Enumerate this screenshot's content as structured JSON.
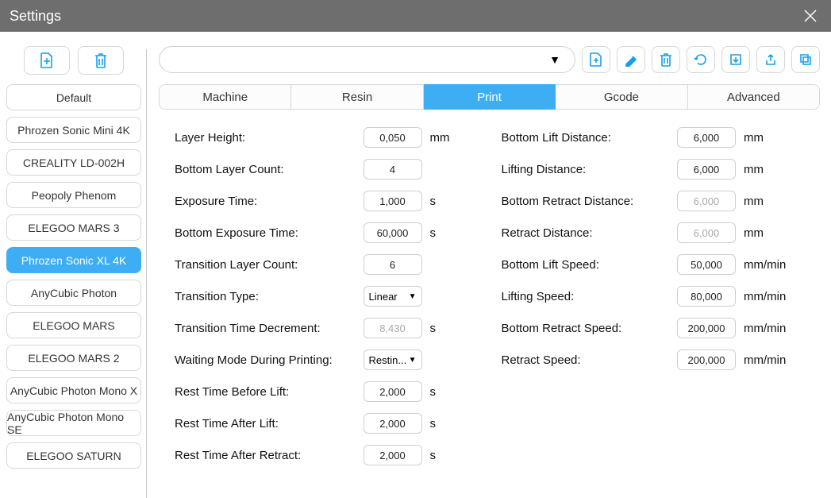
{
  "window": {
    "title": "Settings"
  },
  "sidebar": {
    "profiles": [
      {
        "label": "Default",
        "active": false
      },
      {
        "label": "Phrozen Sonic Mini 4K",
        "active": false
      },
      {
        "label": "CREALITY LD-002H",
        "active": false
      },
      {
        "label": "Peopoly Phenom",
        "active": false
      },
      {
        "label": "ELEGOO MARS 3",
        "active": false
      },
      {
        "label": "Phrozen Sonic XL 4K",
        "active": true
      },
      {
        "label": "AnyCubic Photon",
        "active": false
      },
      {
        "label": "ELEGOO MARS",
        "active": false
      },
      {
        "label": "ELEGOO MARS 2",
        "active": false
      },
      {
        "label": "AnyCubic Photon Mono X",
        "active": false
      },
      {
        "label": "AnyCubic Photon Mono SE",
        "active": false
      },
      {
        "label": "ELEGOO SATURN",
        "active": false
      }
    ]
  },
  "tabs": {
    "items": [
      "Machine",
      "Resin",
      "Print",
      "Gcode",
      "Advanced"
    ],
    "active_index": 2
  },
  "colors": {
    "accent": "#3daef4",
    "icon": "#139ff0",
    "border": "#d7d7d7",
    "titlebar": "#6e6e6e"
  },
  "form": {
    "left": [
      {
        "label": "Layer Height:",
        "value": "0,050",
        "unit": "mm",
        "type": "input",
        "disabled": false
      },
      {
        "label": "Bottom Layer Count:",
        "value": "4",
        "unit": "",
        "type": "input",
        "disabled": false
      },
      {
        "label": "Exposure Time:",
        "value": "1,000",
        "unit": "s",
        "type": "input",
        "disabled": false
      },
      {
        "label": "Bottom Exposure Time:",
        "value": "60,000",
        "unit": "s",
        "type": "input",
        "disabled": false
      },
      {
        "label": "Transition Layer Count:",
        "value": "6",
        "unit": "",
        "type": "input",
        "disabled": false
      },
      {
        "label": "Transition Type:",
        "value": "Linear",
        "unit": "",
        "type": "select",
        "disabled": false
      },
      {
        "label": "Transition Time Decrement:",
        "value": "8,430",
        "unit": "s",
        "type": "input",
        "disabled": true
      },
      {
        "label": "Waiting Mode During Printing:",
        "value": "Restin...",
        "unit": "",
        "type": "select",
        "disabled": false
      },
      {
        "label": "Rest Time Before Lift:",
        "value": "2,000",
        "unit": "s",
        "type": "input",
        "disabled": false
      },
      {
        "label": "Rest Time After Lift:",
        "value": "2,000",
        "unit": "s",
        "type": "input",
        "disabled": false
      },
      {
        "label": "Rest Time After Retract:",
        "value": "2,000",
        "unit": "s",
        "type": "input",
        "disabled": false
      }
    ],
    "right": [
      {
        "label": "Bottom Lift Distance:",
        "value": "6,000",
        "unit": "mm",
        "type": "input",
        "disabled": false
      },
      {
        "label": "Lifting Distance:",
        "value": "6,000",
        "unit": "mm",
        "type": "input",
        "disabled": false
      },
      {
        "label": "Bottom Retract Distance:",
        "value": "6,000",
        "unit": "mm",
        "type": "input",
        "disabled": true
      },
      {
        "label": "Retract Distance:",
        "value": "6,000",
        "unit": "mm",
        "type": "input",
        "disabled": true
      },
      {
        "label": "Bottom Lift Speed:",
        "value": "50,000",
        "unit": "mm/min",
        "type": "input",
        "disabled": false
      },
      {
        "label": "Lifting Speed:",
        "value": "80,000",
        "unit": "mm/min",
        "type": "input",
        "disabled": false
      },
      {
        "label": "Bottom Retract Speed:",
        "value": "200,000",
        "unit": "mm/min",
        "type": "input",
        "disabled": false
      },
      {
        "label": "Retract Speed:",
        "value": "200,000",
        "unit": "mm/min",
        "type": "input",
        "disabled": false
      }
    ]
  }
}
